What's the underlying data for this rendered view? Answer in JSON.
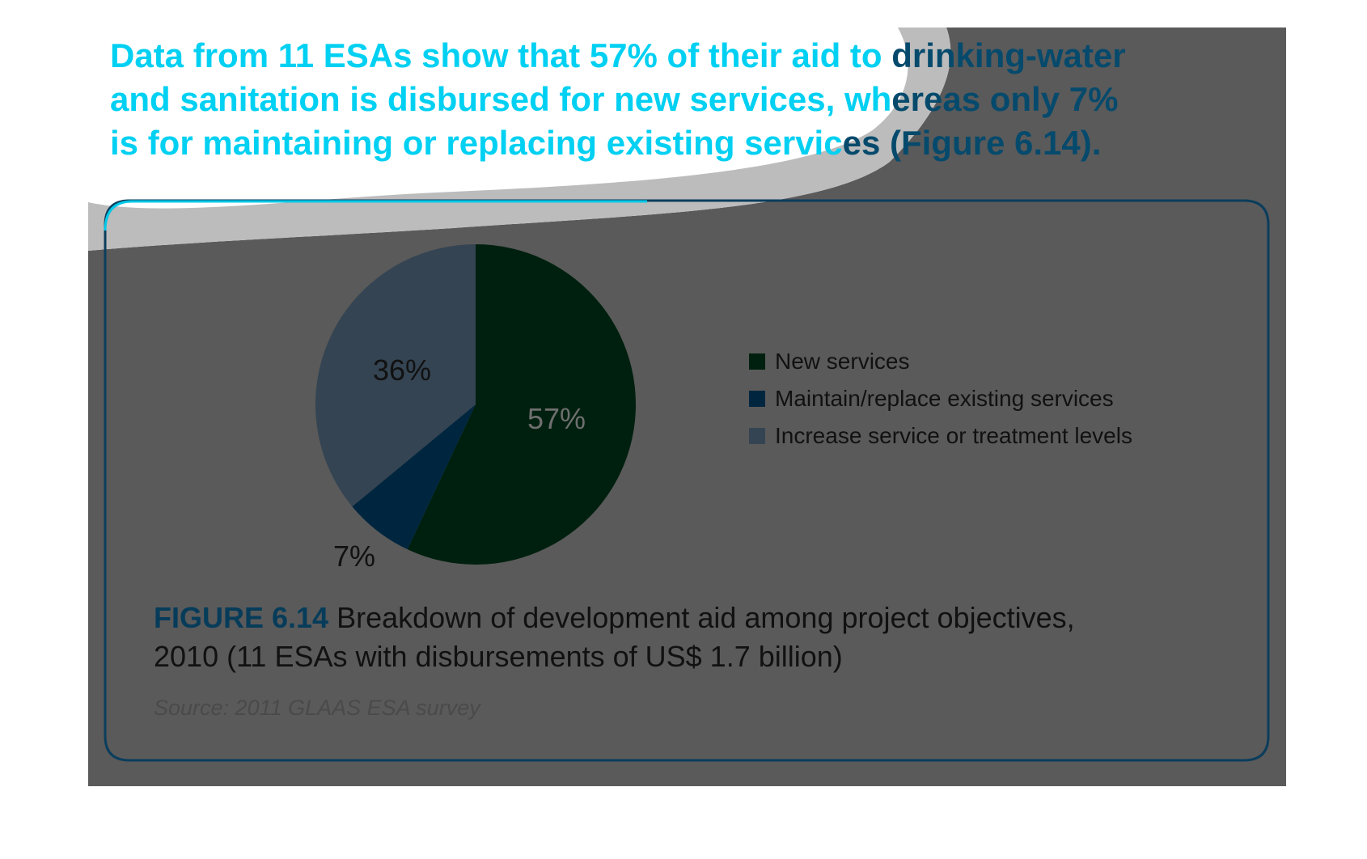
{
  "headline": {
    "line1_cyan": "Data from 11 ESAs show that 57% of their aid to ",
    "line1_dark": "drinking-water",
    "line2_cyan": "and sanitation is disbursed for new services, wh",
    "line2_dark": "ereas only 7%",
    "line3_cyan": "is for maintaining or replacing existing servic",
    "line3_dark": "es (Figure 6.14)."
  },
  "chart_data": {
    "type": "pie",
    "slices": [
      {
        "label": "New services",
        "value": 57,
        "display": "57%",
        "color": "#00200f",
        "label_color": "#6f6f6f"
      },
      {
        "label": "Maintain/replace existing services",
        "value": 7,
        "display": "7%",
        "color": "#00263f",
        "label_color": "#111111"
      },
      {
        "label": "Increase service or treatment levels",
        "value": 36,
        "display": "36%",
        "color": "#344452",
        "label_color": "#111111"
      }
    ]
  },
  "caption": {
    "figure_label": "FIGURE 6.14",
    "text_line1": " Breakdown of development aid among project objectives,",
    "text_line2": "2010 (11 ESAs with disbursements of US$ 1.7 billion)"
  },
  "source": "Source: 2011 GLAAS ESA survey",
  "colors": {
    "overlay": "#5a5a5a",
    "light_band": "#bcbcbc",
    "frame": "#0b3d5c",
    "frame_top": "#00c8e8",
    "headline_cyan": "#00d0f2",
    "headline_dark": "#054a6c"
  }
}
